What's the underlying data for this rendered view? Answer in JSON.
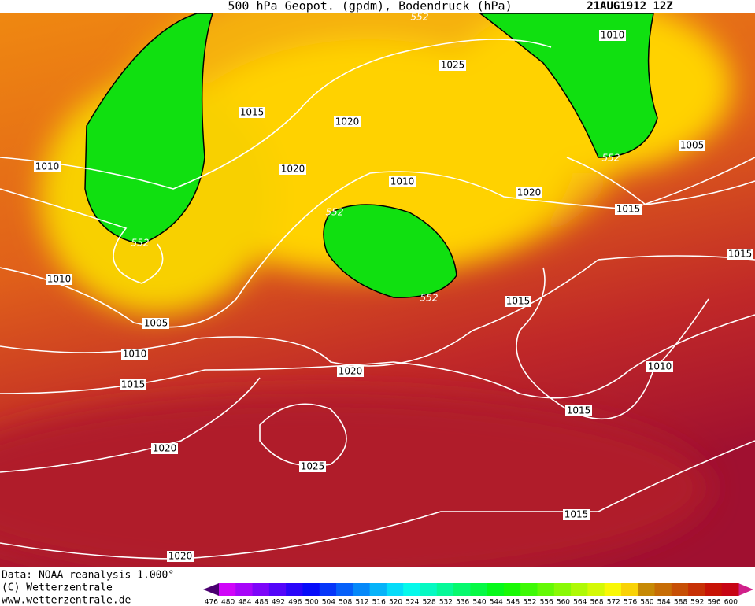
{
  "header": {
    "title": "500 hPa Geopot. (gpdm), Bodendruck (hPa)",
    "date": "21AUG1912 12Z"
  },
  "contour_labels": [
    552,
    1010,
    1025,
    1015,
    1020,
    1020,
    1010,
    1010,
    1020,
    552,
    1015,
    1005,
    552,
    552,
    1010,
    1015,
    552,
    1015,
    1005,
    1010,
    1010,
    1020,
    1015,
    1015,
    1020,
    1025,
    1015,
    1020
  ],
  "footer": [
    "Data: NOAA reanalysis 1.000°",
    "(C) Wetterzentrale",
    "www.wetterzentrale.de"
  ],
  "colorbar": {
    "labels": [
      476,
      480,
      484,
      488,
      492,
      496,
      500,
      504,
      508,
      512,
      516,
      520,
      524,
      528,
      532,
      536,
      540,
      544,
      548,
      552,
      556,
      560,
      564,
      568,
      572,
      576,
      580,
      584,
      588,
      592,
      596,
      600
    ]
  }
}
